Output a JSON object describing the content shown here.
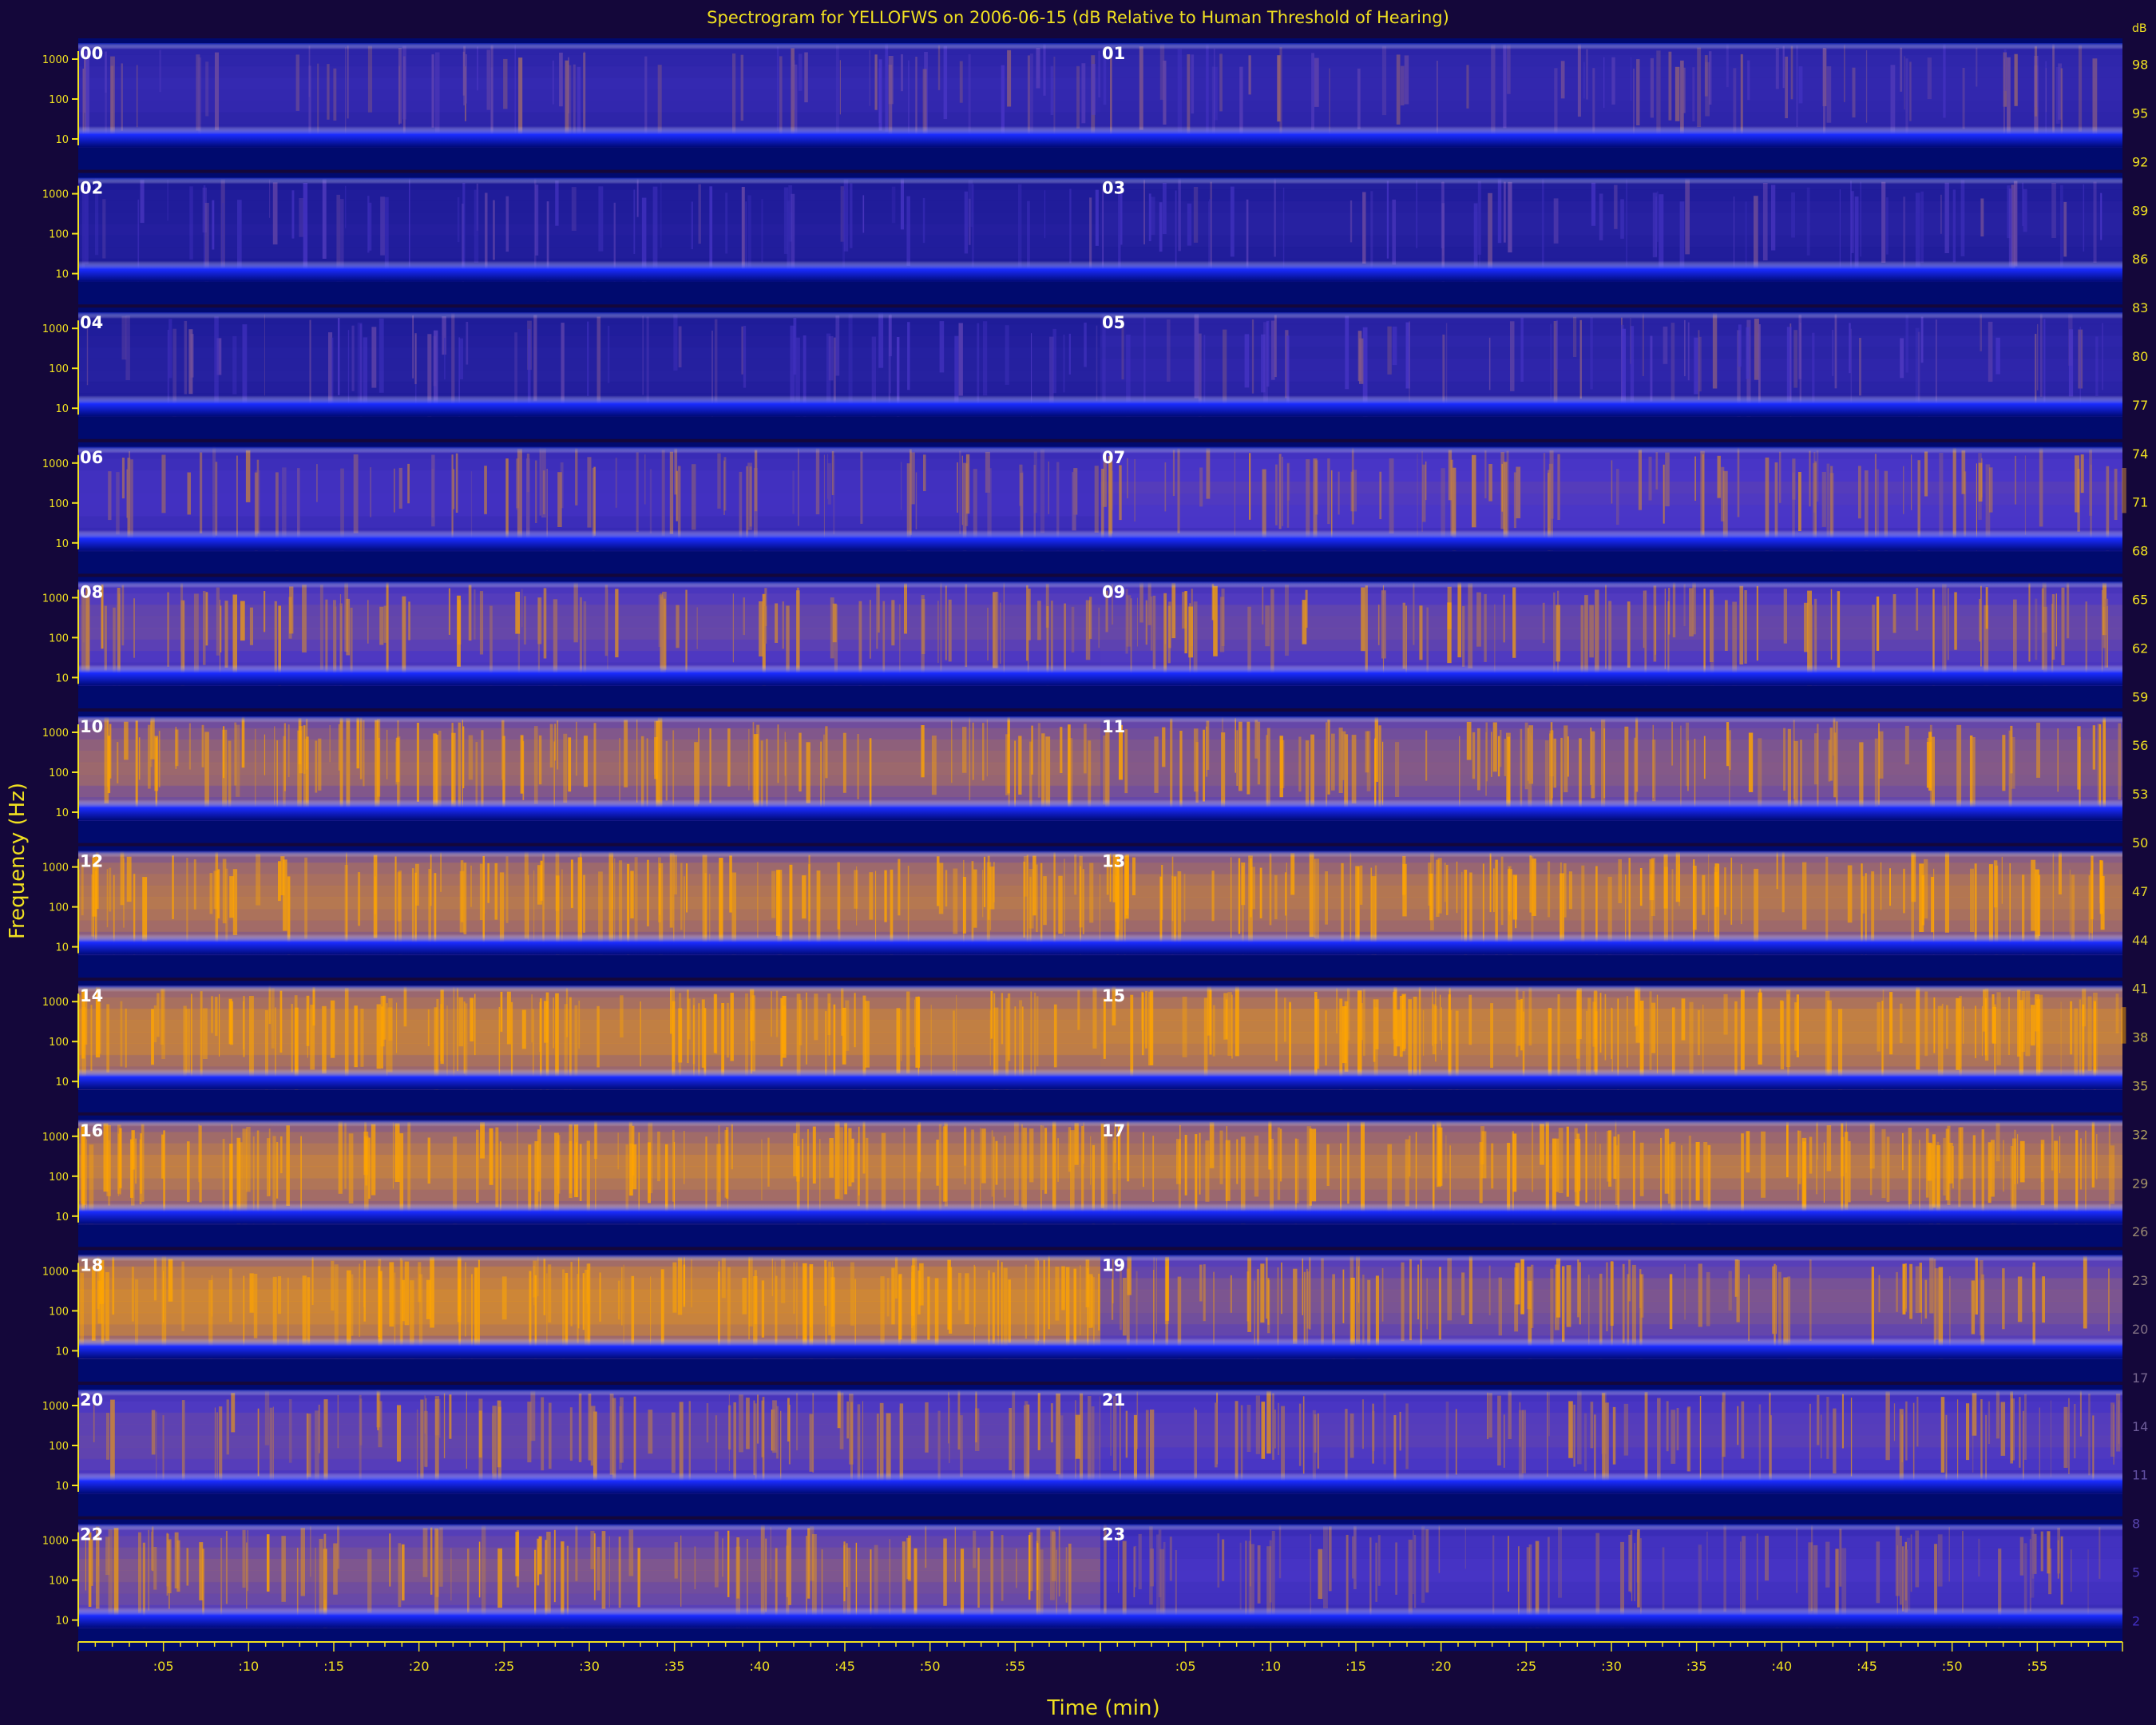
{
  "chart_data": {
    "type": "heatmap",
    "title": "Spectrogram for YELLOFWS on 2006-06-15 (dB Relative to Human Threshold of Hearing)",
    "xlabel": "Time (min)",
    "ylabel": "Frequency (Hz)",
    "panels": [
      {
        "label": "00",
        "intensity": 0.3
      },
      {
        "label": "01",
        "intensity": 0.3
      },
      {
        "label": "02",
        "intensity": 0.18
      },
      {
        "label": "03",
        "intensity": 0.2
      },
      {
        "label": "04",
        "intensity": 0.2
      },
      {
        "label": "05",
        "intensity": 0.26
      },
      {
        "label": "06",
        "intensity": 0.42
      },
      {
        "label": "07",
        "intensity": 0.5
      },
      {
        "label": "08",
        "intensity": 0.55
      },
      {
        "label": "09",
        "intensity": 0.55
      },
      {
        "label": "10",
        "intensity": 0.72
      },
      {
        "label": "11",
        "intensity": 0.66
      },
      {
        "label": "12",
        "intensity": 0.8
      },
      {
        "label": "13",
        "intensity": 0.8
      },
      {
        "label": "14",
        "intensity": 0.85
      },
      {
        "label": "15",
        "intensity": 0.85
      },
      {
        "label": "16",
        "intensity": 0.82
      },
      {
        "label": "17",
        "intensity": 0.8
      },
      {
        "label": "18",
        "intensity": 0.88
      },
      {
        "label": "19",
        "intensity": 0.62
      },
      {
        "label": "20",
        "intensity": 0.55
      },
      {
        "label": "21",
        "intensity": 0.52
      },
      {
        "label": "22",
        "intensity": 0.62
      },
      {
        "label": "23",
        "intensity": 0.44
      }
    ],
    "x_ticks": [
      ":05",
      ":10",
      ":15",
      ":20",
      ":25",
      ":30",
      ":35",
      ":40",
      ":45",
      ":50",
      ":55"
    ],
    "x_range_min": [
      0,
      60
    ],
    "y_ticks": [
      "1000",
      "100",
      "10"
    ],
    "y_scale": "log",
    "colorbar": {
      "unit": "dB",
      "ticks": [
        98,
        95,
        92,
        89,
        86,
        83,
        80,
        77,
        74,
        71,
        68,
        65,
        62,
        59,
        56,
        53,
        50,
        47,
        44,
        41,
        38,
        35,
        32,
        29,
        26,
        23,
        20,
        17,
        14,
        11,
        8,
        5,
        2
      ],
      "range": [
        0,
        100
      ]
    },
    "colors": {
      "background": "#14073a",
      "low": "#000a78",
      "mid": "#4a36c8",
      "high": "#ffa500",
      "axis": "#f0e020"
    }
  }
}
